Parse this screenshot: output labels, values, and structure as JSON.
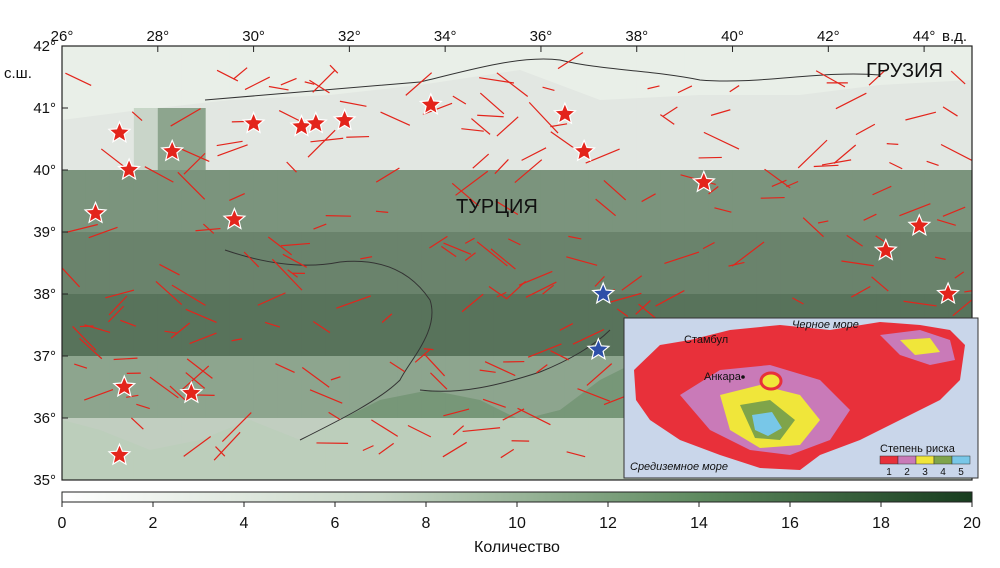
{
  "map": {
    "lon_range": [
      26,
      45
    ],
    "lat_range": [
      35,
      42
    ],
    "top_labels": [
      "26°",
      "28°",
      "30°",
      "32°",
      "34°",
      "36°",
      "38°",
      "40°",
      "42°",
      "44°"
    ],
    "top_label_lons": [
      26,
      28,
      30,
      32,
      34,
      36,
      38,
      40,
      42,
      44
    ],
    "east_suffix": "в.д.",
    "left_labels": [
      "42°",
      "41°",
      "40°",
      "39°",
      "38°",
      "37°",
      "36°",
      "35°"
    ],
    "left_label_lats": [
      42,
      41,
      40,
      39,
      38,
      37,
      36,
      35
    ],
    "north_suffix": "с.ш.",
    "country_main": "ТУРЦИЯ",
    "country_ne": "ГРУЗИЯ",
    "grid_cells": [
      [
        2,
        2,
        2,
        2,
        2,
        2,
        2,
        2,
        2,
        2,
        2,
        2,
        2,
        2,
        2,
        2,
        2,
        2,
        2,
        2,
        2,
        2,
        2,
        2,
        2,
        2,
        2,
        2,
        2,
        2,
        2,
        2,
        2,
        2,
        2,
        2,
        2,
        2
      ],
      [
        2,
        2,
        2,
        5,
        12,
        12,
        2,
        2,
        2,
        2,
        2,
        2,
        2,
        2,
        2,
        2,
        2,
        2,
        2,
        2,
        2,
        2,
        2,
        2,
        2,
        2,
        2,
        2,
        2,
        2,
        2,
        2,
        2,
        2,
        2,
        2,
        2,
        2
      ],
      [
        14,
        14,
        14,
        14,
        14,
        14,
        14,
        14,
        14,
        14,
        14,
        14,
        14,
        14,
        14,
        14,
        14,
        14,
        14,
        14,
        14,
        14,
        14,
        14,
        14,
        14,
        14,
        14,
        14,
        14,
        14,
        14,
        14,
        14,
        14,
        14,
        14,
        14
      ],
      [
        16,
        16,
        16,
        16,
        16,
        16,
        16,
        16,
        16,
        16,
        16,
        16,
        16,
        16,
        16,
        16,
        16,
        16,
        16,
        16,
        16,
        16,
        16,
        16,
        16,
        16,
        16,
        16,
        16,
        16,
        16,
        16,
        16,
        16,
        16,
        16,
        16,
        16
      ],
      [
        18,
        18,
        18,
        18,
        18,
        18,
        18,
        18,
        18,
        18,
        18,
        18,
        18,
        18,
        18,
        18,
        18,
        18,
        18,
        18,
        18,
        18,
        18,
        18,
        18,
        18,
        18,
        18,
        18,
        18,
        18,
        18,
        18,
        18,
        18,
        18,
        18,
        18
      ],
      [
        12,
        12,
        12,
        12,
        12,
        12,
        12,
        12,
        12,
        12,
        12,
        12,
        12,
        12,
        12,
        12,
        12,
        12,
        12,
        12,
        12,
        12,
        12,
        12,
        12,
        12,
        12,
        12,
        12,
        12,
        12,
        12,
        12,
        12,
        12,
        12,
        12,
        12
      ],
      [
        6,
        6,
        6,
        6,
        6,
        6,
        6,
        6,
        6,
        6,
        6,
        6,
        6,
        6,
        6,
        6,
        6,
        6,
        6,
        6,
        6,
        6,
        6,
        6,
        6,
        6,
        6,
        6,
        6,
        6,
        6,
        6,
        6,
        6,
        6,
        6,
        6,
        6
      ]
    ],
    "stars_red": [
      [
        27.2,
        40.6
      ],
      [
        27.4,
        40.0
      ],
      [
        28.3,
        40.3
      ],
      [
        30.0,
        40.75
      ],
      [
        31.0,
        40.7
      ],
      [
        31.3,
        40.75
      ],
      [
        31.9,
        40.8
      ],
      [
        33.7,
        41.05
      ],
      [
        36.5,
        40.9
      ],
      [
        36.9,
        40.3
      ],
      [
        39.4,
        39.8
      ],
      [
        26.7,
        39.3
      ],
      [
        29.6,
        39.2
      ],
      [
        43.2,
        38.7
      ],
      [
        43.9,
        39.1
      ],
      [
        44.5,
        38.0
      ],
      [
        27.3,
        36.5
      ],
      [
        28.7,
        36.4
      ],
      [
        27.2,
        35.4
      ]
    ],
    "stars_blue": [
      [
        37.3,
        38.0
      ],
      [
        37.2,
        37.1
      ]
    ]
  },
  "colorbar": {
    "min": 0,
    "max": 20,
    "tick_labels": [
      "0",
      "2",
      "4",
      "6",
      "8",
      "10",
      "12",
      "14",
      "16",
      "18",
      "20"
    ],
    "label": "Количество",
    "color_low": "#ffffff",
    "color_high": "#183d1f"
  },
  "inset": {
    "city1": "Стамбул",
    "city2": "Анкара",
    "sea_north": "Черное море",
    "sea_south": "Средиземное море",
    "legend_title": "Степень риска",
    "legend_items": [
      "1",
      "2",
      "3",
      "4",
      "5"
    ],
    "legend_colors": [
      "#e8303a",
      "#c97ab8",
      "#f0e63a",
      "#7fa44a",
      "#78c7e8"
    ]
  },
  "colors": {
    "fault": "#e3241b",
    "star_red": "#e3241b",
    "star_blue": "#2d4fa8",
    "sea": "#ffffff",
    "inset_sea": "#c9d6ea",
    "coast": "#333333"
  }
}
